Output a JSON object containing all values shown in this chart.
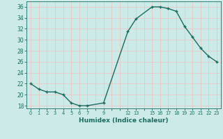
{
  "x": [
    0,
    1,
    2,
    3,
    4,
    5,
    6,
    7,
    9,
    12,
    13,
    15,
    16,
    17,
    18,
    19,
    20,
    21,
    22,
    23
  ],
  "y": [
    22,
    21,
    20.5,
    20.5,
    20,
    18.5,
    18,
    18,
    18.5,
    31.5,
    33.8,
    36,
    36,
    35.7,
    35.2,
    32.5,
    30.5,
    28.5,
    27,
    26
  ],
  "line_color": "#1a6b5e",
  "marker_color": "#1a6b5e",
  "bg_color": "#cceae7",
  "grid_color": "#e8c8c8",
  "xlabel": "Humidex (Indice chaleur)",
  "all_xticks": [
    0,
    1,
    2,
    3,
    4,
    5,
    6,
    7,
    8,
    9,
    10,
    11,
    12,
    13,
    14,
    15,
    16,
    17,
    18,
    19,
    20,
    21,
    22,
    23
  ],
  "labeled_xticks": [
    0,
    1,
    2,
    3,
    4,
    5,
    6,
    7,
    9,
    12,
    13,
    15,
    16,
    17,
    18,
    19,
    20,
    21,
    22,
    23
  ],
  "xtick_labels": [
    "0",
    "1",
    "2",
    "3",
    "4",
    "5",
    "6",
    "7",
    "9",
    "12",
    "13",
    "15",
    "16",
    "17",
    "18",
    "19",
    "20",
    "21",
    "22",
    "23"
  ],
  "yticks": [
    18,
    20,
    22,
    24,
    26,
    28,
    30,
    32,
    34,
    36
  ],
  "ylim": [
    17.5,
    37.0
  ],
  "xlim": [
    -0.5,
    23.5
  ]
}
